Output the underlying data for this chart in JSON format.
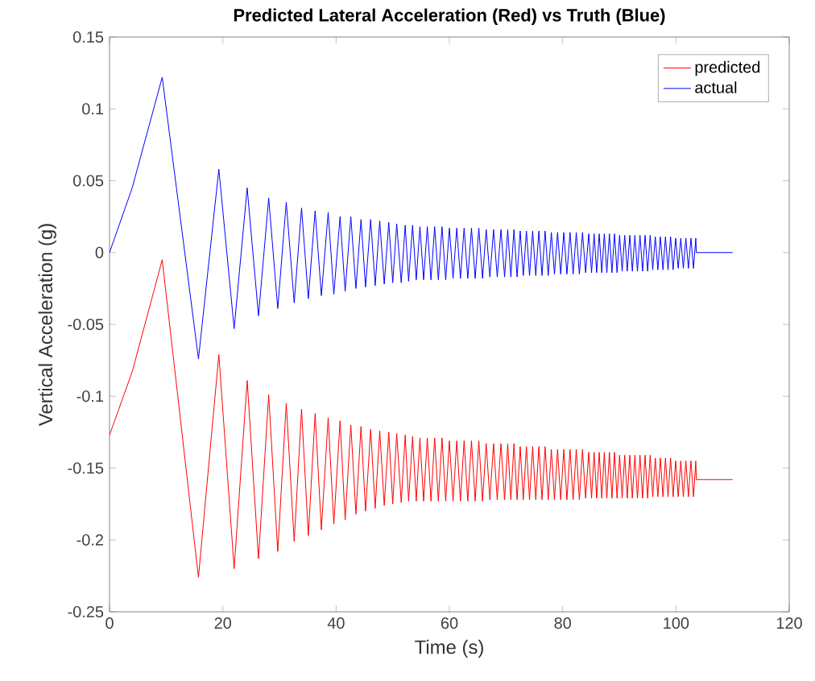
{
  "chart_data": {
    "type": "line",
    "title": "Predicted Lateral Acceleration (Red) vs Truth (Blue)",
    "xlabel": "Time (s)",
    "ylabel": "Vertical Acceleration (g)",
    "xlim": [
      0,
      120
    ],
    "ylim": [
      -0.25,
      0.15
    ],
    "xticks": [
      0,
      20,
      40,
      60,
      80,
      100,
      120
    ],
    "yticks": [
      -0.25,
      -0.2,
      -0.15,
      -0.1,
      -0.05,
      0,
      0.05,
      0.1,
      0.15
    ],
    "grid": false,
    "legend": "top right",
    "marker": "none",
    "series": [
      {
        "name": "predicted",
        "color": "#ff0000",
        "x": [
          0,
          4,
          9.3,
          15.7,
          19.3,
          22.0,
          24.3,
          26.3,
          28.1,
          29.7,
          31.2,
          32.6,
          33.9,
          35.1,
          36.3,
          37.4,
          38.6,
          39.6,
          40.7,
          41.6,
          42.6,
          43.5,
          44.4,
          45.2,
          46.1,
          46.9,
          47.7,
          48.5,
          49.3,
          50.0,
          50.7,
          51.5,
          52.2,
          52.8,
          53.5,
          54.15,
          54.8,
          55.45,
          56.1,
          56.75,
          57.4,
          58.05,
          58.7,
          59.35,
          60.0,
          60.65,
          61.3,
          61.95,
          62.6,
          63.25,
          63.9,
          64.55,
          65.2,
          65.85,
          66.5,
          67.15,
          67.8,
          68.45,
          69.1,
          69.75,
          70.3,
          70.85,
          71.4,
          71.95,
          72.5,
          73.05,
          73.6,
          74.15,
          74.7,
          75.25,
          75.8,
          76.35,
          76.9,
          77.45,
          78.0,
          78.55,
          79.1,
          79.65,
          80.2,
          80.75,
          81.3,
          81.85,
          82.4,
          82.95,
          83.5,
          84.05,
          84.6,
          85.1,
          85.55,
          86.0,
          86.45,
          86.9,
          87.35,
          87.8,
          88.25,
          88.7,
          89.15,
          89.6,
          90.05,
          90.5,
          90.95,
          91.4,
          91.85,
          92.3,
          92.75,
          93.2,
          93.65,
          94.1,
          94.55,
          95.0,
          95.45,
          95.9,
          96.35,
          96.8,
          97.25,
          97.7,
          98.15,
          98.6,
          99.05,
          99.5,
          99.95,
          100.4,
          100.85,
          101.3,
          101.75,
          102.2,
          102.65,
          103.1,
          103.5,
          103.6,
          110
        ],
        "values": [
          -0.127,
          -0.083,
          -0.005,
          -0.226,
          -0.071,
          -0.22,
          -0.089,
          -0.213,
          -0.099,
          -0.208,
          -0.105,
          -0.201,
          -0.109,
          -0.197,
          -0.112,
          -0.193,
          -0.115,
          -0.189,
          -0.117,
          -0.186,
          -0.12,
          -0.182,
          -0.121,
          -0.18,
          -0.123,
          -0.178,
          -0.124,
          -0.176,
          -0.125,
          -0.175,
          -0.126,
          -0.174,
          -0.127,
          -0.173,
          -0.128,
          -0.173,
          -0.129,
          -0.173,
          -0.129,
          -0.173,
          -0.129,
          -0.173,
          -0.129,
          -0.173,
          -0.131,
          -0.173,
          -0.131,
          -0.173,
          -0.131,
          -0.173,
          -0.131,
          -0.173,
          -0.131,
          -0.173,
          -0.133,
          -0.172,
          -0.133,
          -0.172,
          -0.133,
          -0.172,
          -0.133,
          -0.172,
          -0.133,
          -0.172,
          -0.135,
          -0.172,
          -0.135,
          -0.172,
          -0.135,
          -0.172,
          -0.135,
          -0.172,
          -0.135,
          -0.172,
          -0.137,
          -0.172,
          -0.137,
          -0.172,
          -0.137,
          -0.172,
          -0.137,
          -0.172,
          -0.137,
          -0.172,
          -0.137,
          -0.171,
          -0.139,
          -0.171,
          -0.139,
          -0.171,
          -0.139,
          -0.171,
          -0.139,
          -0.171,
          -0.139,
          -0.171,
          -0.139,
          -0.171,
          -0.141,
          -0.171,
          -0.141,
          -0.171,
          -0.141,
          -0.171,
          -0.141,
          -0.171,
          -0.141,
          -0.171,
          -0.141,
          -0.171,
          -0.141,
          -0.17,
          -0.143,
          -0.17,
          -0.143,
          -0.17,
          -0.143,
          -0.17,
          -0.143,
          -0.17,
          -0.145,
          -0.17,
          -0.145,
          -0.17,
          -0.145,
          -0.17,
          -0.145,
          -0.17,
          -0.145,
          -0.158,
          -0.158
        ]
      },
      {
        "name": "actual",
        "color": "#0000ff",
        "x": [
          0,
          4,
          9.3,
          15.7,
          19.3,
          22.0,
          24.3,
          26.3,
          28.1,
          29.7,
          31.2,
          32.6,
          33.9,
          35.1,
          36.3,
          37.4,
          38.6,
          39.6,
          40.7,
          41.6,
          42.6,
          43.5,
          44.4,
          45.2,
          46.1,
          46.9,
          47.7,
          48.5,
          49.3,
          50.0,
          50.7,
          51.5,
          52.2,
          52.8,
          53.5,
          54.15,
          54.8,
          55.45,
          56.1,
          56.75,
          57.4,
          58.05,
          58.7,
          59.35,
          60.0,
          60.65,
          61.3,
          61.95,
          62.6,
          63.25,
          63.9,
          64.55,
          65.2,
          65.85,
          66.5,
          67.15,
          67.8,
          68.45,
          69.1,
          69.75,
          70.3,
          70.85,
          71.4,
          71.95,
          72.5,
          73.05,
          73.6,
          74.15,
          74.7,
          75.25,
          75.8,
          76.35,
          76.9,
          77.45,
          78.0,
          78.55,
          79.1,
          79.65,
          80.2,
          80.75,
          81.3,
          81.85,
          82.4,
          82.95,
          83.5,
          84.05,
          84.6,
          85.1,
          85.55,
          86.0,
          86.45,
          86.9,
          87.35,
          87.8,
          88.25,
          88.7,
          89.15,
          89.6,
          90.05,
          90.5,
          90.95,
          91.4,
          91.85,
          92.3,
          92.75,
          93.2,
          93.65,
          94.1,
          94.55,
          95.0,
          95.45,
          95.9,
          96.35,
          96.8,
          97.25,
          97.7,
          98.15,
          98.6,
          99.05,
          99.5,
          99.95,
          100.4,
          100.85,
          101.3,
          101.75,
          102.2,
          102.65,
          103.1,
          103.5,
          103.6,
          110
        ],
        "values": [
          0,
          0.045,
          0.122,
          -0.074,
          0.058,
          -0.053,
          0.045,
          -0.044,
          0.038,
          -0.039,
          0.035,
          -0.035,
          0.031,
          -0.032,
          0.029,
          -0.03,
          0.028,
          -0.029,
          0.025,
          -0.027,
          0.025,
          -0.025,
          0.023,
          -0.024,
          0.023,
          -0.023,
          0.022,
          -0.022,
          0.021,
          -0.021,
          0.02,
          -0.021,
          0.019,
          -0.02,
          0.019,
          -0.019,
          0.018,
          -0.019,
          0.018,
          -0.019,
          0.018,
          -0.019,
          0.018,
          -0.019,
          0.017,
          -0.018,
          0.017,
          -0.018,
          0.017,
          -0.018,
          0.017,
          -0.018,
          0.017,
          -0.018,
          0.016,
          -0.017,
          0.016,
          -0.017,
          0.016,
          -0.017,
          0.016,
          -0.017,
          0.016,
          -0.017,
          0.015,
          -0.016,
          0.015,
          -0.016,
          0.015,
          -0.016,
          0.015,
          -0.016,
          0.015,
          -0.016,
          0.014,
          -0.015,
          0.014,
          -0.015,
          0.014,
          -0.015,
          0.014,
          -0.015,
          0.014,
          -0.015,
          0.014,
          -0.014,
          0.013,
          -0.014,
          0.013,
          -0.014,
          0.013,
          -0.014,
          0.013,
          -0.014,
          0.013,
          -0.014,
          0.013,
          -0.014,
          0.012,
          -0.013,
          0.012,
          -0.013,
          0.012,
          -0.013,
          0.012,
          -0.013,
          0.012,
          -0.013,
          0.012,
          -0.013,
          0.012,
          -0.012,
          0.011,
          -0.012,
          0.011,
          -0.012,
          0.011,
          -0.012,
          0.011,
          -0.012,
          0.01,
          -0.011,
          0.01,
          -0.011,
          0.01,
          -0.011,
          0.01,
          -0.011,
          0.01,
          0,
          0
        ]
      }
    ]
  }
}
